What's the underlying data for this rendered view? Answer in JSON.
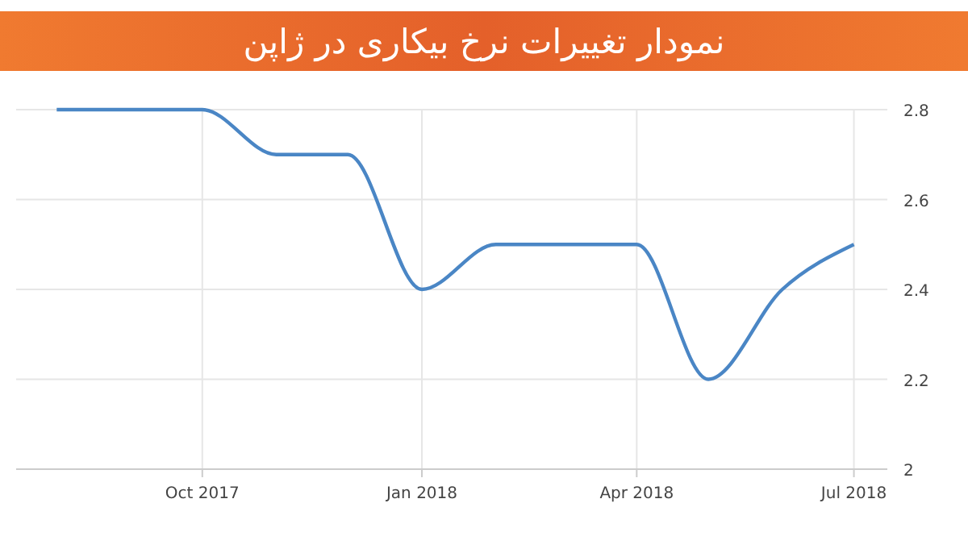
{
  "chart_data": {
    "type": "line",
    "title": "نمودار تغییرات نرخ بیکاری در ژاپن",
    "x": [
      "2017-08",
      "2017-09",
      "2017-10",
      "2017-11",
      "2017-12",
      "2018-01",
      "2018-02",
      "2018-03",
      "2018-04",
      "2018-05",
      "2018-06",
      "2018-07"
    ],
    "series": [
      {
        "color": "#4a86c5",
        "values": [
          2.8,
          2.8,
          2.8,
          2.7,
          2.7,
          2.4,
          2.5,
          2.5,
          2.5,
          2.2,
          2.4,
          2.5
        ]
      }
    ],
    "xlim": [
      "2017-07-15",
      "2018-07-15"
    ],
    "xticks": [
      {
        "value": "2017-10",
        "label": "Oct 2017"
      },
      {
        "value": "2018-01",
        "label": "Jan 2018"
      },
      {
        "value": "2018-04",
        "label": "Apr 2018"
      },
      {
        "value": "2018-07",
        "label": "Jul 2018"
      }
    ],
    "ylim": [
      2,
      2.8
    ],
    "yticks": [
      2,
      2.2,
      2.4,
      2.6,
      2.8
    ],
    "grid": true,
    "marker": "none",
    "line_style": "solid"
  }
}
